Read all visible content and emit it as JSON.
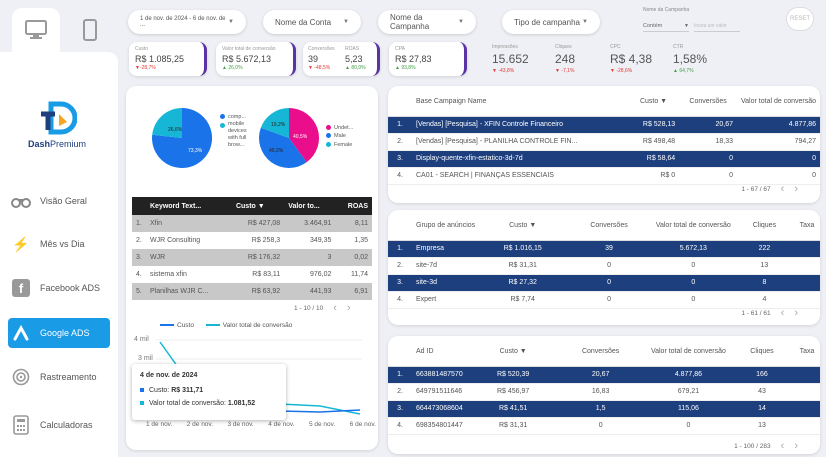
{
  "colors": {
    "accent": "#1a9be6",
    "navy": "#1d3f7d",
    "pie_blue": "#1a73e8",
    "pie_cyan": "#16b7d6",
    "pie_pink": "#ea0e8c"
  },
  "brand": {
    "name_bold": "Dash",
    "name_light": "Premium"
  },
  "nav": [
    {
      "label": "Visão Geral",
      "icon": "binoculars-icon"
    },
    {
      "label": "Mês vs Dia",
      "icon": "lightning-icon"
    },
    {
      "label": "Facebook ADS",
      "icon": "facebook-icon"
    },
    {
      "label": "Google ADS",
      "icon": "google-ads-icon"
    },
    {
      "label": "Rastreamento",
      "icon": "target-icon"
    },
    {
      "label": "Calculadoras",
      "icon": "calculator-icon"
    }
  ],
  "filters": {
    "date": "1 de nov. de 2024 - 6 de nov. de ...",
    "account": "Nome da Conta",
    "campaign": "Nome da Campanha",
    "type": "Tipo de campanha",
    "campaign_name_label": "Nome da Campanha",
    "contains": "Contém",
    "value_placeholder": "Insira um valor",
    "reset": "RESET"
  },
  "kpis": [
    {
      "label": "Custo",
      "value": "R$ 1.085,25",
      "delta": "▼-28,7%",
      "dir": "down"
    },
    {
      "label": "Valor total de conversão",
      "value": "R$ 5.672,13",
      "delta": "▲ 26,0%",
      "dir": "up"
    },
    {
      "label": "Conversões",
      "value": "39",
      "delta": "▼ -48,5%",
      "dir": "down"
    },
    {
      "label": "ROAS",
      "value": "5,23",
      "delta": "▲ 80,9%",
      "dir": "up"
    },
    {
      "label": "CPA",
      "value": "R$ 27,83",
      "delta": "▲ 93,8%",
      "dir": "up"
    }
  ],
  "kpis2": [
    {
      "label": "Impressões",
      "value": "15.652",
      "delta": "▼ -43,8%",
      "dir": "down"
    },
    {
      "label": "Cliques",
      "value": "248",
      "delta": "▼ -7,1%",
      "dir": "down"
    },
    {
      "label": "CPC",
      "value": "R$ 4,38",
      "delta": "▼ -28,6%",
      "dir": "down"
    },
    {
      "label": "CTR",
      "value": "1,58%",
      "delta": "▲ 64,7%",
      "dir": "up"
    }
  ],
  "pie1": {
    "slices": [
      {
        "label": "comp...",
        "pct": 73.3
      },
      {
        "label": "mobile devices with full brow...",
        "pct": 26.6
      }
    ],
    "labels": [
      "26,6%",
      "73,3%"
    ]
  },
  "pie2": {
    "slices": [
      {
        "label": "Undet...",
        "pct": 40.5
      },
      {
        "label": "Male",
        "pct": 40.2
      },
      {
        "label": "Female",
        "pct": 19.2
      }
    ],
    "labels": [
      "19,2%",
      "40,5%",
      "40,2%"
    ]
  },
  "keywords": {
    "headers": [
      "Keyword Text...",
      "Custo ▼",
      "Valor to...",
      "ROAS"
    ],
    "rows": [
      [
        "1.",
        "Xfin",
        "R$ 427,08",
        "3.464,91",
        "8,11"
      ],
      [
        "2.",
        "WJR Consulting",
        "R$ 258,3",
        "349,35",
        "1,35"
      ],
      [
        "3.",
        "WJR",
        "R$ 176,32",
        "3",
        "0,02"
      ],
      [
        "4.",
        "sistema xfin",
        "R$ 83,11",
        "976,02",
        "11,74"
      ],
      [
        "5.",
        "Planilhas WJR C...",
        "R$ 63,92",
        "441,93",
        "6,91"
      ]
    ],
    "pager": "1 - 10 / 10"
  },
  "line_chart": {
    "legend": [
      "Custo",
      "Valor total de conversão"
    ],
    "y_ticks": [
      "4 mil",
      "3 mil"
    ],
    "x_ticks": [
      "1 de nov.",
      "2 de nov.",
      "3 de nov.",
      "4 de nov.",
      "5 de nov.",
      "6 de nov."
    ],
    "tooltip": {
      "title": "4 de nov. de 2024",
      "custo_label": "Custo:",
      "custo_value": "R$ 311,71",
      "valor_label": "Valor total de conversão:",
      "valor_value": "1.081,52"
    }
  },
  "campaigns": {
    "headers": [
      "Base Campaign Name",
      "Custo ▼",
      "Conversões",
      "Valor total de conversão"
    ],
    "rows": [
      [
        "1.",
        "[Vendas] [Pesquisa] - XFIN Controle Financeiro",
        "R$ 528,13",
        "20,67",
        "4.877,86"
      ],
      [
        "2.",
        "[Vendas] [Pesquisa] - PLANILHA CONTROLE FIN...",
        "R$ 498,48",
        "18,33",
        "794,27"
      ],
      [
        "3.",
        "Display-quente-xfin-estatico-3d-7d",
        "R$ 58,64",
        "0",
        "0"
      ],
      [
        "4.",
        "CA01 - SEARCH | FINANÇAS ESSENCIAIS",
        "R$ 0",
        "0",
        "0"
      ]
    ],
    "pager": "1 - 67 / 67"
  },
  "adgroups": {
    "headers": [
      "Grupo de anúncios",
      "Custo ▼",
      "Conversões",
      "Valor total de conversão",
      "Cliques",
      "Taxa"
    ],
    "rows": [
      [
        "1.",
        "Empresa",
        "R$ 1.016,15",
        "39",
        "5.672,13",
        "222"
      ],
      [
        "2.",
        "site-7d",
        "R$ 31,31",
        "0",
        "0",
        "13"
      ],
      [
        "3.",
        "site-3d",
        "R$ 27,32",
        "0",
        "0",
        "8"
      ],
      [
        "4.",
        "Expert",
        "R$ 7,74",
        "0",
        "0",
        "4"
      ]
    ],
    "pager": "1 - 61 / 61"
  },
  "ads": {
    "headers": [
      "Ad ID",
      "Custo ▼",
      "Conversões",
      "Valor total de conversão",
      "Cliques",
      "Taxa"
    ],
    "rows": [
      [
        "1.",
        "663881487570",
        "R$ 520,39",
        "20,67",
        "4.877,86",
        "166"
      ],
      [
        "2.",
        "649791511646",
        "R$ 456,97",
        "16,83",
        "679,21",
        "43"
      ],
      [
        "3.",
        "664473068604",
        "R$ 41,51",
        "1,5",
        "115,06",
        "14"
      ],
      [
        "4.",
        "698354801447",
        "R$ 31,31",
        "0",
        "0",
        "13"
      ]
    ],
    "pager": "1 - 100 / 283"
  }
}
